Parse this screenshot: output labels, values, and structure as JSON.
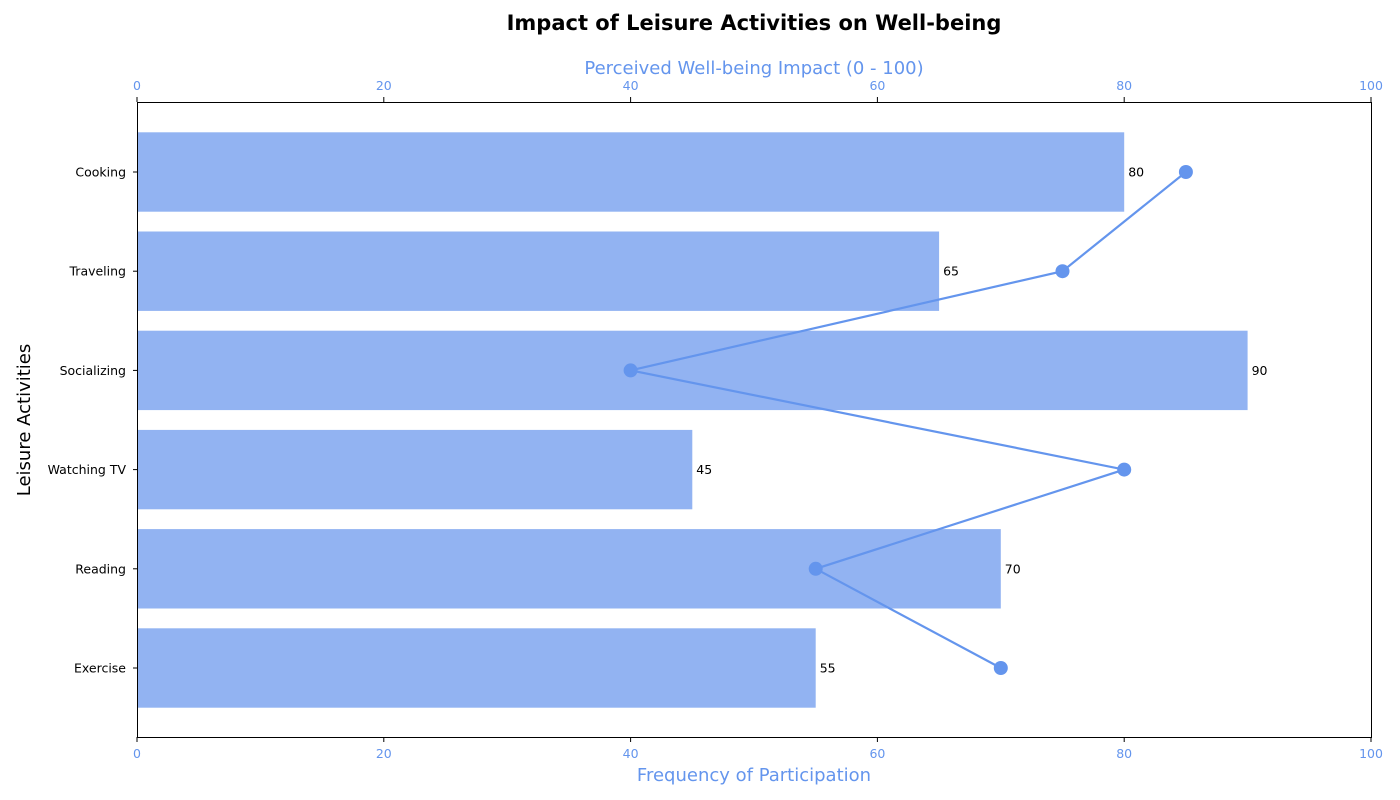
{
  "chart_data": {
    "type": "bar",
    "title": "Impact of Leisure Activities on Well-being",
    "ylabel": "Leisure Activities",
    "categories": [
      "Exercise",
      "Reading",
      "Watching TV",
      "Socializing",
      "Traveling",
      "Cooking"
    ],
    "bars": {
      "axis_label": "Frequency of Participation",
      "xlim": [
        0,
        100
      ],
      "ticks": [
        0,
        20,
        40,
        60,
        80,
        100
      ],
      "values": [
        55,
        70,
        45,
        90,
        65,
        80
      ],
      "color": "#92b3f2"
    },
    "line": {
      "axis_label": "Perceived Well-being Impact (0 - 100)",
      "xlim": [
        0,
        100
      ],
      "ticks": [
        0,
        20,
        40,
        60,
        80,
        100
      ],
      "values": [
        70,
        55,
        80,
        40,
        75,
        85
      ],
      "color": "#6495ed"
    },
    "axis_color": "#6495ed"
  }
}
